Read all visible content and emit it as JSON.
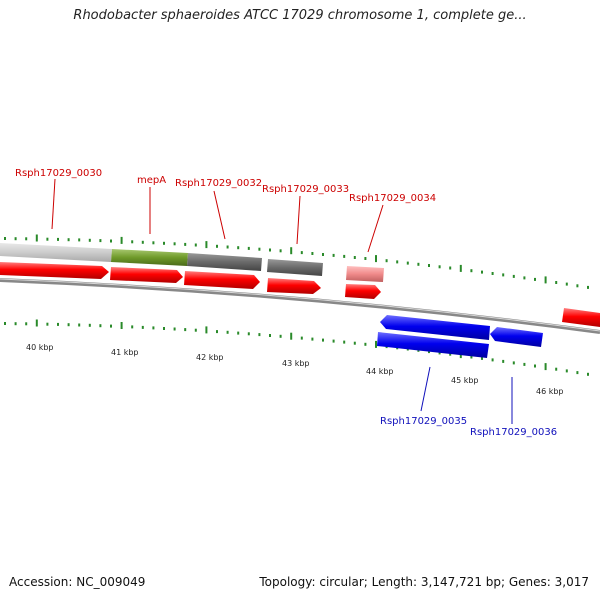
{
  "title": "Rhodobacter sphaeroides ATCC 17029 chromosome 1, complete ge...",
  "footer": {
    "accession": "Accession: NC_009049",
    "stats": "Topology: circular; Length: 3,147,721 bp; Genes: 3,017"
  },
  "colors": {
    "forward_gene": "#ff0000",
    "reverse_gene": "#0000ff",
    "label_forward": "#cc0000",
    "label_reverse": "#1010bb",
    "tick": "#2a8a2a",
    "backbone": "#888888",
    "feature_light": "#cccccc",
    "feature_green": "#6f9a2a",
    "feature_dark": "#6a6a6a",
    "pseudo_pink": "#f08a8a"
  },
  "scale": {
    "unit": "kbp",
    "labels": [
      "40 kbp",
      "41 kbp",
      "42 kbp",
      "43 kbp",
      "44 kbp",
      "45 kbp",
      "46 kbp"
    ]
  },
  "genes": {
    "forward": [
      "Rsph17029_0030",
      "mepA",
      "Rsph17029_0032",
      "Rsph17029_0033",
      "Rsph17029_0034"
    ],
    "reverse": [
      "Rsph17029_0035",
      "Rsph17029_0036"
    ]
  }
}
